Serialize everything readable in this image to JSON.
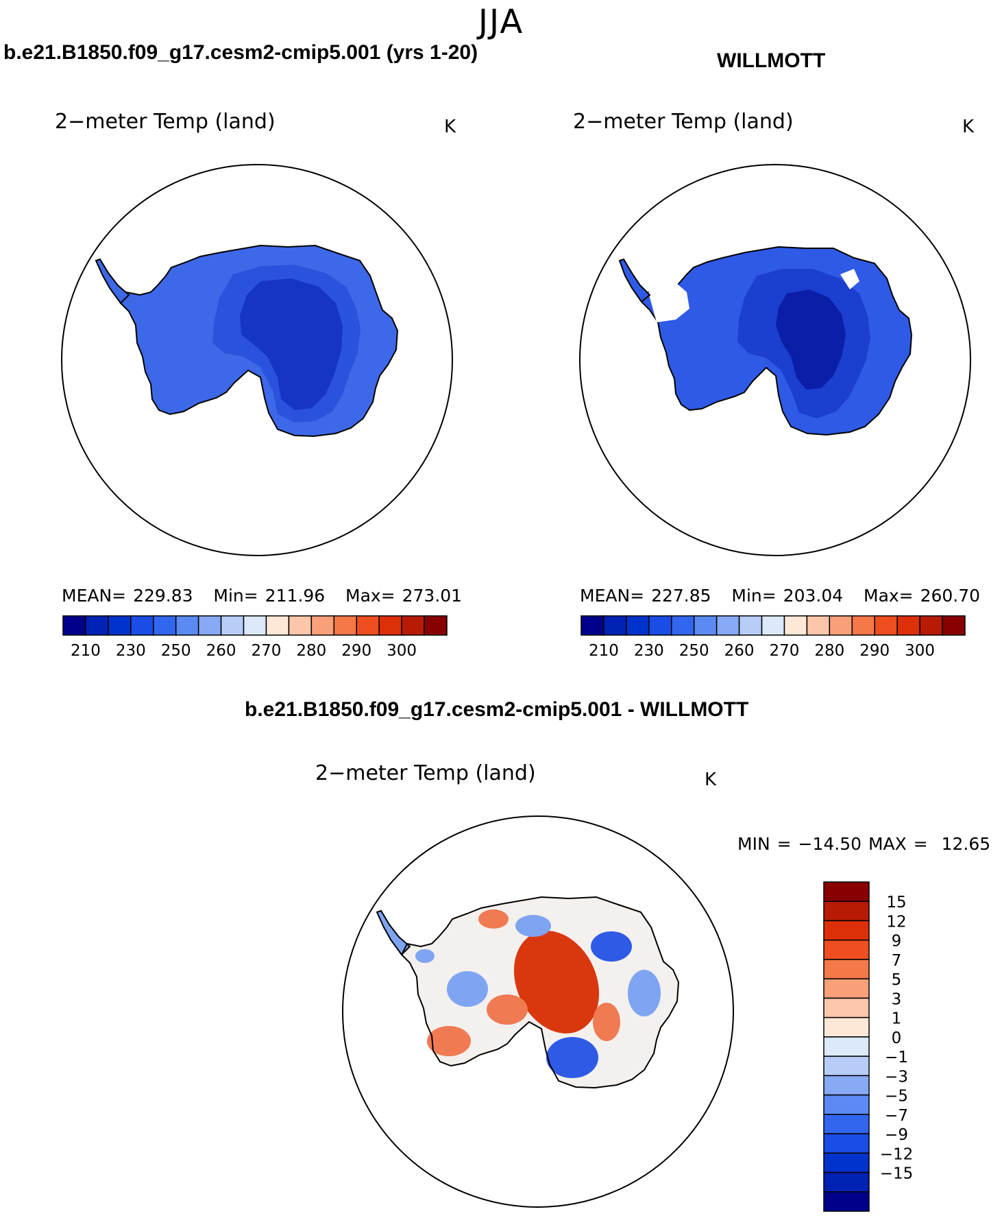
{
  "season": "JJA",
  "panels": [
    {
      "title": "b.e21.B1850.f09_g17.cesm2-cmip5.001 (yrs 1-20)",
      "variable": "2−meter Temp (land)",
      "units": "K",
      "stats": {
        "mean_label": "MEAN=",
        "mean": "229.83",
        "min_label": "Min=",
        "min": "211.96",
        "max_label": "Max=",
        "max": "273.01"
      },
      "fill": "model"
    },
    {
      "title": "WILLMOTT",
      "variable": "2−meter Temp (land)",
      "units": "K",
      "stats": {
        "mean_label": "MEAN=",
        "mean": "227.85",
        "min_label": "Min=",
        "min": "203.04",
        "max_label": "Max=",
        "max": "260.70"
      },
      "fill": "obs"
    }
  ],
  "abs_colorbar": {
    "colors": [
      "#00008b",
      "#0022b4",
      "#0033cc",
      "#1a4de6",
      "#3366ee",
      "#5a8af2",
      "#87aaf5",
      "#b7cdf7",
      "#dce9fb",
      "#fde8d8",
      "#fcc6ab",
      "#f9a07a",
      "#f57848",
      "#ee4e20",
      "#dd3008",
      "#b81b04",
      "#880000"
    ],
    "labels": [
      "210",
      "230",
      "250",
      "260",
      "270",
      "280",
      "290",
      "300"
    ]
  },
  "diff_panel": {
    "title": "b.e21.B1850.f09_g17.cesm2-cmip5.001 - WILLMOTT",
    "variable": "2−meter Temp (land)",
    "units": "K",
    "min_label": "MIN =",
    "min": "−14.50",
    "max_label": "MAX =",
    "max": "12.65",
    "colors": [
      "#880000",
      "#b81b04",
      "#dd3008",
      "#ee4e20",
      "#f57848",
      "#f9a07a",
      "#fcc6ab",
      "#fde8d8",
      "#dce9fb",
      "#b7cdf7",
      "#87aaf5",
      "#5a8af2",
      "#3366ee",
      "#1a4de6",
      "#0033cc",
      "#0022b4",
      "#00008b"
    ],
    "labels": [
      "15",
      "12",
      "9",
      "7",
      "5",
      "3",
      "1",
      "0",
      "−1",
      "−3",
      "−5",
      "−7",
      "−9",
      "−12",
      "−15"
    ]
  },
  "map_colors": {
    "model_outer": "#3d68e8",
    "model_mid": "#2b52dc",
    "model_inner": "#1536c4",
    "obs_outer": "#2f5ae6",
    "obs_mid": "#1b3fcf",
    "obs_inner": "#0a1ea8",
    "diff_neutral": "#f3f0ee",
    "diff_warm": "#f07a52",
    "diff_hot": "#d9380e",
    "diff_cool": "#7fa4f2",
    "diff_cold": "#2f5ae6"
  }
}
